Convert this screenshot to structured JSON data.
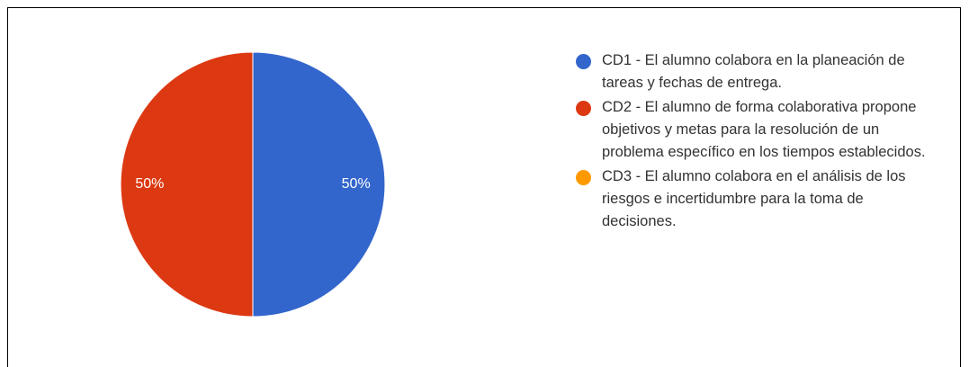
{
  "chart_data": {
    "type": "pie",
    "title": "",
    "series": [
      {
        "name": "CD1 - El alumno colabora en la planeación de tareas y fechas de entrega.",
        "value": 50,
        "label": "50%",
        "color": "#3366cc"
      },
      {
        "name": "CD2 - El alumno de forma colaborativa propone objetivos y metas para la resolución de un problema específico en los tiempos establecidos.",
        "value": 50,
        "label": "50%",
        "color": "#dc3912"
      },
      {
        "name": "CD3 - El alumno colabora en el análisis de los riesgos e incertidumbre para la toma de decisiones.",
        "value": 0,
        "label": "",
        "color": "#ff9900"
      }
    ],
    "start_angle_deg": 90,
    "direction": "clockwise",
    "legend_position": "right"
  }
}
